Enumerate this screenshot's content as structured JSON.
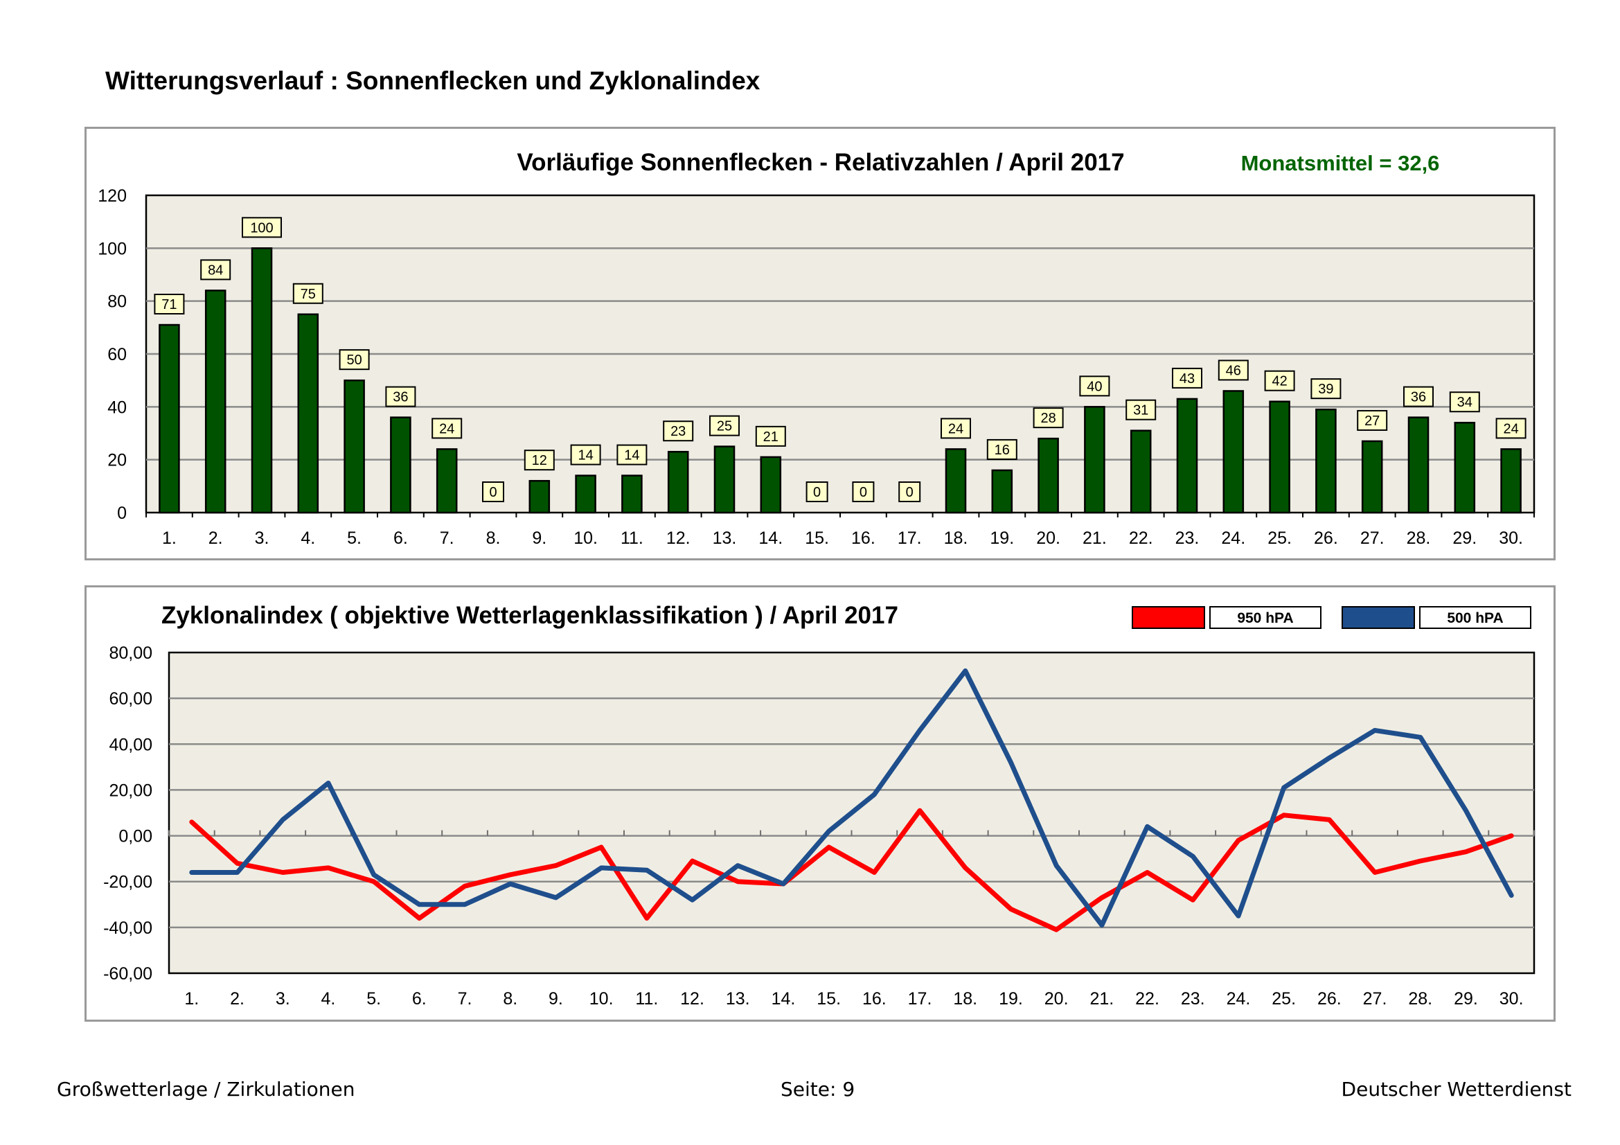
{
  "page_title": "Witterungsverlauf : Sonnenflecken und Zyklonalindex",
  "footer": {
    "left": "Großwetterlage / Zirkulationen",
    "center": "Seite: 9",
    "right": "Deutscher Wetterdienst"
  },
  "colors": {
    "bar": "#005200",
    "plot_bg": "#efede3",
    "label_bg": "#ffffcc",
    "mean_text": "#006400",
    "series_950": "#ff0000",
    "series_500": "#1f4e8c"
  },
  "chart_data": [
    {
      "type": "bar",
      "title": "Vorläufige Sonnenflecken - Relativzahlen  /   April 2017",
      "annotation": "Monatsmittel = 32,6",
      "categories": [
        "1.",
        "2.",
        "3.",
        "4.",
        "5.",
        "6.",
        "7.",
        "8.",
        "9.",
        "10.",
        "11.",
        "12.",
        "13.",
        "14.",
        "15.",
        "16.",
        "17.",
        "18.",
        "19.",
        "20.",
        "21.",
        "22.",
        "23.",
        "24.",
        "25.",
        "26.",
        "27.",
        "28.",
        "29.",
        "30."
      ],
      "values": [
        71,
        84,
        100,
        75,
        50,
        36,
        24,
        0,
        12,
        14,
        14,
        23,
        25,
        21,
        0,
        0,
        0,
        24,
        16,
        28,
        40,
        31,
        43,
        46,
        42,
        39,
        27,
        36,
        34,
        24
      ],
      "ylim": [
        0,
        120
      ],
      "yticks": [
        "0",
        "20",
        "40",
        "60",
        "80",
        "100",
        "120"
      ],
      "grid": true,
      "xlabel": "",
      "ylabel": ""
    },
    {
      "type": "line",
      "title": "Zyklonalindex  ( objektive Wetterlagenklassifikation )  /  April 2017",
      "categories": [
        "1.",
        "2.",
        "3.",
        "4.",
        "5.",
        "6.",
        "7.",
        "8.",
        "9.",
        "10.",
        "11.",
        "12.",
        "13.",
        "14.",
        "15.",
        "16.",
        "17.",
        "18.",
        "19.",
        "20.",
        "21.",
        "22.",
        "23.",
        "24.",
        "25.",
        "26.",
        "27.",
        "28.",
        "29.",
        "30."
      ],
      "series": [
        {
          "name": "950 hPA",
          "color": "#ff0000",
          "values": [
            6,
            -12,
            -16,
            -14,
            -20,
            -36,
            -22,
            -17,
            -13,
            -5,
            -36,
            -11,
            -20,
            -21,
            -5,
            -16,
            11,
            -14,
            -32,
            -41,
            -27,
            -16,
            -28,
            -2,
            9,
            7,
            -16,
            -11,
            -7,
            0
          ]
        },
        {
          "name": "500 hPA",
          "color": "#1f4e8c",
          "values": [
            -16,
            -16,
            7,
            23,
            -17,
            -30,
            -30,
            -21,
            -27,
            -14,
            -15,
            -28,
            -13,
            -21,
            2,
            18,
            46,
            72,
            32,
            -13,
            -39,
            4,
            -9,
            -35,
            21,
            34,
            46,
            43,
            11,
            -26
          ]
        }
      ],
      "ylim": [
        -60,
        80
      ],
      "yticks": [
        "-60,00",
        "-40,00",
        "-20,00",
        "0,00",
        "20,00",
        "40,00",
        "60,00",
        "80,00"
      ],
      "grid": true,
      "xlabel": "",
      "ylabel": ""
    }
  ]
}
